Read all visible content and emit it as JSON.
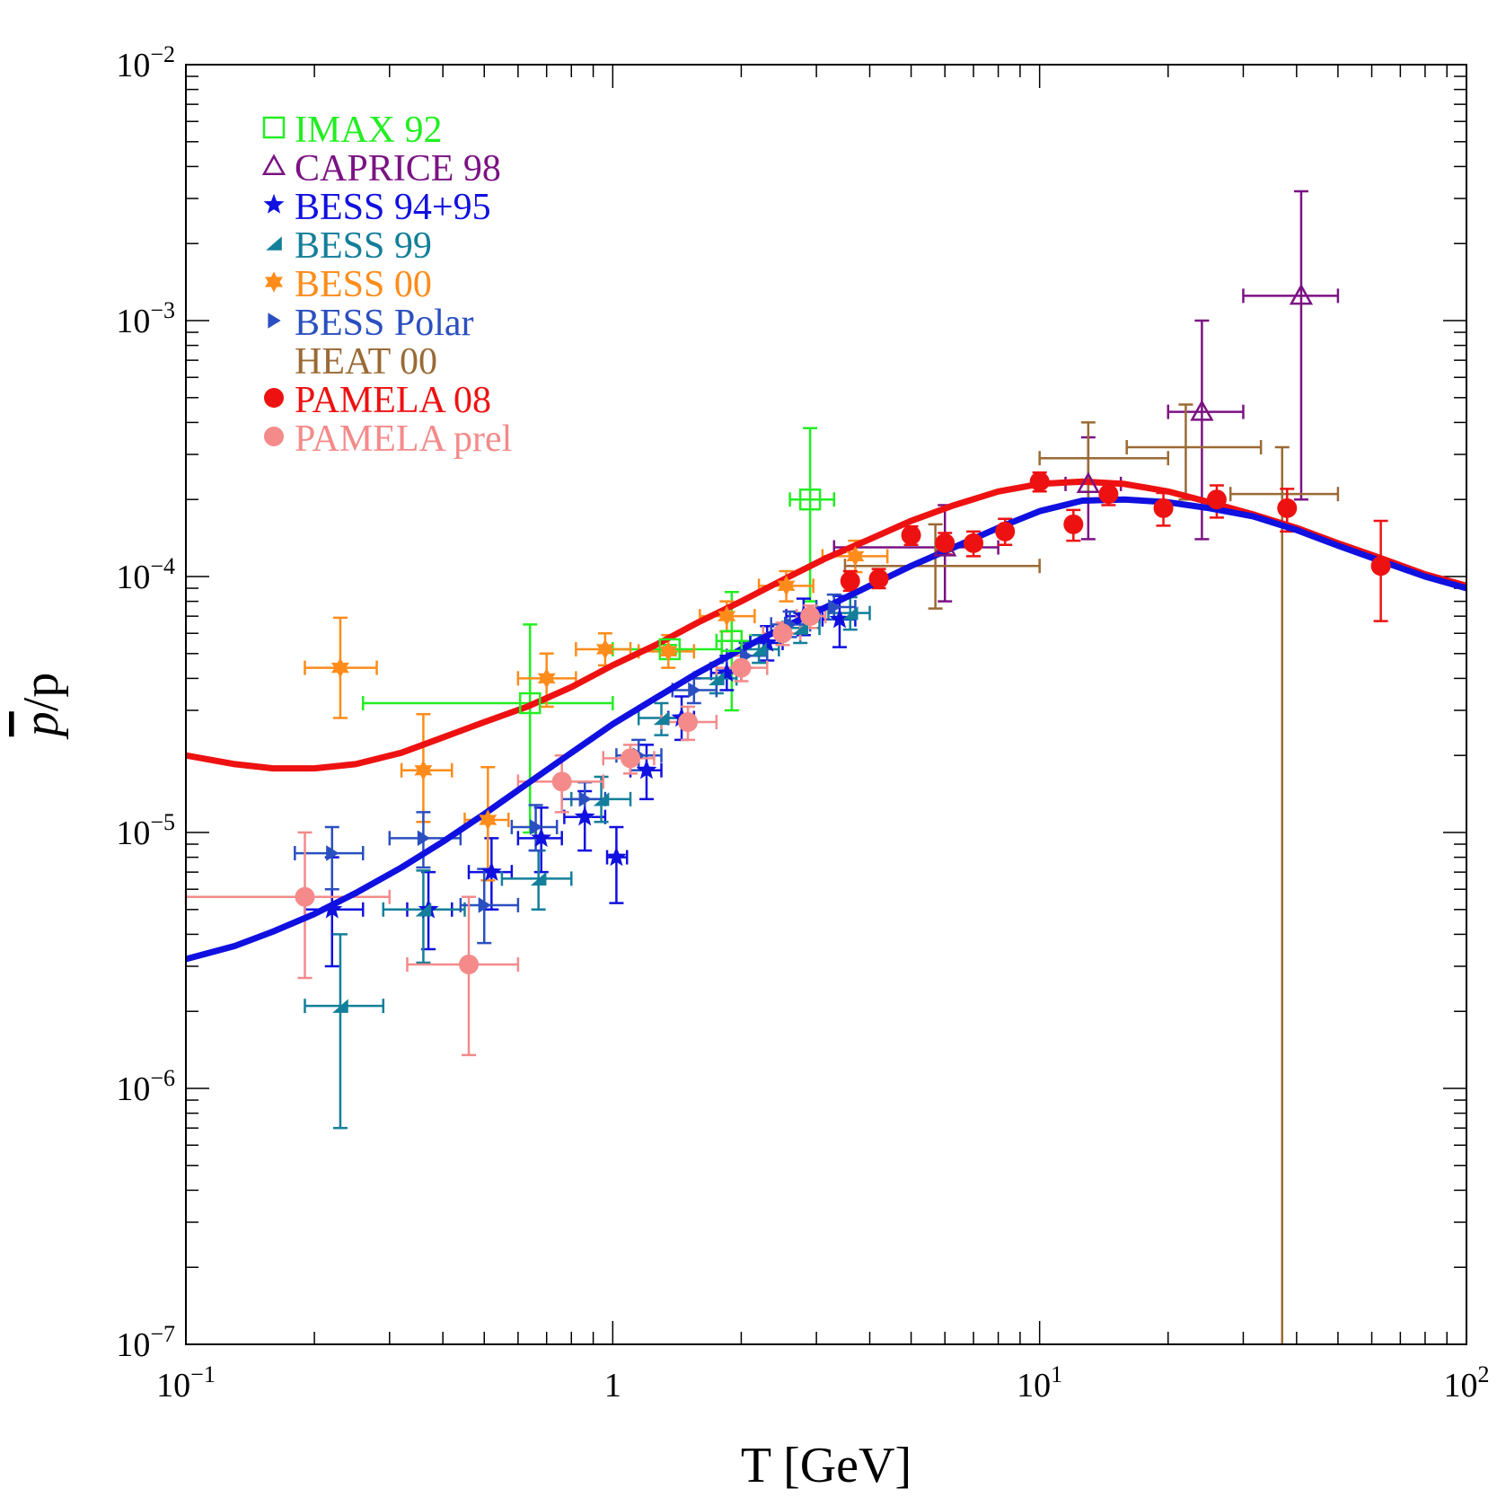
{
  "chart_data": {
    "type": "scatter",
    "title": "",
    "xlabel": "T [GeV]",
    "ylabel_bar": "p",
    "ylabel_rest": "/p",
    "xscale": "log",
    "yscale": "log",
    "xlim": [
      0.1,
      100
    ],
    "ylim": [
      1e-07,
      0.01
    ],
    "grid": false,
    "legend_position": "top-left",
    "x_ticks": [
      {
        "value": 0.1,
        "base": "10",
        "exp": "−1"
      },
      {
        "value": 1,
        "base": "1",
        "exp": ""
      },
      {
        "value": 10,
        "base": "10",
        "exp": "1"
      },
      {
        "value": 100,
        "base": "10",
        "exp": "2"
      }
    ],
    "y_ticks": [
      {
        "value": 0.01,
        "base": "10",
        "exp": "−2"
      },
      {
        "value": 0.001,
        "base": "10",
        "exp": "−3"
      },
      {
        "value": 0.0001,
        "base": "10",
        "exp": "−4"
      },
      {
        "value": 1e-05,
        "base": "10",
        "exp": "−5"
      },
      {
        "value": 1e-06,
        "base": "10",
        "exp": "−6"
      },
      {
        "value": 1e-07,
        "base": "10",
        "exp": "−7"
      }
    ],
    "series": [
      {
        "name": "IMAX 92",
        "color": "#22ee22",
        "marker": "square-open",
        "points": [
          {
            "x": 0.64,
            "y": 3.2e-05,
            "xlo": 0.26,
            "xhi": 1.0,
            "ylo": 1e-05,
            "yhi": 6.5e-05
          },
          {
            "x": 1.36,
            "y": 5.2e-05,
            "xlo": 1.0,
            "xhi": 1.8,
            "ylo": 5e-05,
            "yhi": 5.4e-05
          },
          {
            "x": 1.9,
            "y": 5.6e-05,
            "xlo": 1.75,
            "xhi": 2.1,
            "ylo": 3e-05,
            "yhi": 8.7e-05
          },
          {
            "x": 2.9,
            "y": 0.0002,
            "xlo": 2.6,
            "xhi": 3.3,
            "ylo": 8e-05,
            "yhi": 0.00038
          }
        ]
      },
      {
        "name": "CAPRICE 98",
        "color": "#7b1283",
        "marker": "triangle-open",
        "points": [
          {
            "x": 6.0,
            "y": 0.00013,
            "xlo": 3.3,
            "xhi": 8.0,
            "ylo": 8e-05,
            "yhi": 0.00019
          },
          {
            "x": 13.0,
            "y": 0.00023,
            "xlo": 11.5,
            "xhi": 15.5,
            "ylo": 0.00014,
            "yhi": 0.00035
          },
          {
            "x": 24.0,
            "y": 0.00044,
            "xlo": 20.0,
            "xhi": 30.0,
            "ylo": 0.00014,
            "yhi": 0.001
          },
          {
            "x": 41.0,
            "y": 0.00125,
            "xlo": 30.0,
            "xhi": 50.0,
            "ylo": 0.0002,
            "yhi": 0.0032
          }
        ]
      },
      {
        "name": "BESS 94+95",
        "color": "#1010e0",
        "marker": "star",
        "points": [
          {
            "x": 0.22,
            "y": 5e-06,
            "xlo": 0.19,
            "xhi": 0.26,
            "ylo": 3e-06,
            "yhi": 8e-06
          },
          {
            "x": 0.37,
            "y": 5e-06,
            "xlo": 0.33,
            "xhi": 0.42,
            "ylo": 3.5e-06,
            "yhi": 7e-06
          },
          {
            "x": 0.52,
            "y": 7e-06,
            "xlo": 0.46,
            "xhi": 0.58,
            "ylo": 5e-06,
            "yhi": 9.5e-06
          },
          {
            "x": 0.68,
            "y": 9.5e-06,
            "xlo": 0.6,
            "xhi": 0.76,
            "ylo": 7e-06,
            "yhi": 1.25e-05
          },
          {
            "x": 0.86,
            "y": 1.15e-05,
            "xlo": 0.77,
            "xhi": 0.96,
            "ylo": 8.5e-06,
            "yhi": 1.45e-05
          },
          {
            "x": 1.02,
            "y": 8e-06,
            "xlo": 0.97,
            "xhi": 1.08,
            "ylo": 5.3e-06,
            "yhi": 1.05e-05
          },
          {
            "x": 1.2,
            "y": 1.75e-05,
            "xlo": 1.1,
            "xhi": 1.3,
            "ylo": 1.35e-05,
            "yhi": 2.2e-05
          },
          {
            "x": 1.45,
            "y": 2.8e-05,
            "xlo": 1.35,
            "xhi": 1.55,
            "ylo": 2.3e-05,
            "yhi": 3.4e-05
          },
          {
            "x": 1.85,
            "y": 4.2e-05,
            "xlo": 1.7,
            "xhi": 2.0,
            "ylo": 3.6e-05,
            "yhi": 4.9e-05
          },
          {
            "x": 2.3,
            "y": 5.5e-05,
            "xlo": 2.1,
            "xhi": 2.5,
            "ylo": 4.7e-05,
            "yhi": 6.4e-05
          },
          {
            "x": 2.8,
            "y": 7e-05,
            "xlo": 2.55,
            "xhi": 3.05,
            "ylo": 5.9e-05,
            "yhi": 8.2e-05
          },
          {
            "x": 3.4,
            "y": 6.8e-05,
            "xlo": 3.1,
            "xhi": 3.7,
            "ylo": 5.3e-05,
            "yhi": 8.4e-05
          }
        ]
      },
      {
        "name": "BESS 99",
        "color": "#137f9a",
        "marker": "bowtie",
        "points": [
          {
            "x": 0.23,
            "y": 2.1e-06,
            "xlo": 0.19,
            "xhi": 0.29,
            "ylo": 7e-07,
            "yhi": 4e-06
          },
          {
            "x": 0.36,
            "y": 5e-06,
            "xlo": 0.29,
            "xhi": 0.45,
            "ylo": 3.1e-06,
            "yhi": 7.1e-06
          },
          {
            "x": 0.67,
            "y": 6.6e-06,
            "xlo": 0.55,
            "xhi": 0.8,
            "ylo": 5e-06,
            "yhi": 8.5e-06
          },
          {
            "x": 0.94,
            "y": 1.35e-05,
            "xlo": 0.8,
            "xhi": 1.1,
            "ylo": 1.1e-05,
            "yhi": 1.65e-05
          },
          {
            "x": 1.3,
            "y": 2.8e-05,
            "xlo": 1.15,
            "xhi": 1.45,
            "ylo": 2.4e-05,
            "yhi": 3.2e-05
          },
          {
            "x": 1.75,
            "y": 4e-05,
            "xlo": 1.55,
            "xhi": 1.95,
            "ylo": 3.5e-05,
            "yhi": 4.6e-05
          },
          {
            "x": 2.2,
            "y": 5.2e-05,
            "xlo": 2.0,
            "xhi": 2.45,
            "ylo": 4.6e-05,
            "yhi": 5.9e-05
          },
          {
            "x": 2.75,
            "y": 6.3e-05,
            "xlo": 2.5,
            "xhi": 3.05,
            "ylo": 5.5e-05,
            "yhi": 7.2e-05
          },
          {
            "x": 3.6,
            "y": 7.2e-05,
            "xlo": 3.2,
            "xhi": 4.0,
            "ylo": 6.2e-05,
            "yhi": 8.3e-05
          }
        ]
      },
      {
        "name": "BESS 00",
        "color": "#ff8c1a",
        "marker": "star6",
        "points": [
          {
            "x": 0.23,
            "y": 4.4e-05,
            "xlo": 0.19,
            "xhi": 0.28,
            "ylo": 2.8e-05,
            "yhi": 6.9e-05
          },
          {
            "x": 0.36,
            "y": 1.75e-05,
            "xlo": 0.32,
            "xhi": 0.42,
            "ylo": 1.1e-05,
            "yhi": 2.9e-05
          },
          {
            "x": 0.51,
            "y": 1.12e-05,
            "xlo": 0.45,
            "xhi": 0.57,
            "ylo": 6.5e-06,
            "yhi": 1.8e-05
          },
          {
            "x": 0.7,
            "y": 4e-05,
            "xlo": 0.6,
            "xhi": 0.82,
            "ylo": 3.1e-05,
            "yhi": 5e-05
          },
          {
            "x": 0.96,
            "y": 5.2e-05,
            "xlo": 0.82,
            "xhi": 1.1,
            "ylo": 4.5e-05,
            "yhi": 6e-05
          },
          {
            "x": 1.35,
            "y": 5.1e-05,
            "xlo": 1.15,
            "xhi": 1.55,
            "ylo": 4.4e-05,
            "yhi": 5.9e-05
          },
          {
            "x": 1.85,
            "y": 7e-05,
            "xlo": 1.6,
            "xhi": 2.15,
            "ylo": 6.1e-05,
            "yhi": 8e-05
          },
          {
            "x": 2.55,
            "y": 9.2e-05,
            "xlo": 2.2,
            "xhi": 2.95,
            "ylo": 8e-05,
            "yhi": 0.000105
          },
          {
            "x": 3.7,
            "y": 0.00012,
            "xlo": 3.1,
            "xhi": 4.4,
            "ylo": 0.000104,
            "yhi": 0.000138
          }
        ]
      },
      {
        "name": "BESS Polar",
        "color": "#2a4fc0",
        "marker": "triangle-right",
        "points": [
          {
            "x": 0.22,
            "y": 8.3e-06,
            "xlo": 0.18,
            "xhi": 0.26,
            "ylo": 6e-06,
            "yhi": 1.05e-05
          },
          {
            "x": 0.36,
            "y": 9.5e-06,
            "xlo": 0.3,
            "xhi": 0.44,
            "ylo": 7.3e-06,
            "yhi": 1.2e-05
          },
          {
            "x": 0.5,
            "y": 5.2e-06,
            "xlo": 0.44,
            "xhi": 0.6,
            "ylo": 3.7e-06,
            "yhi": 7.2e-06
          },
          {
            "x": 0.66,
            "y": 1.05e-05,
            "xlo": 0.58,
            "xhi": 0.74,
            "ylo": 8.5e-06,
            "yhi": 1.28e-05
          },
          {
            "x": 0.86,
            "y": 1.35e-05,
            "xlo": 0.76,
            "xhi": 0.96,
            "ylo": 1.15e-05,
            "yhi": 1.57e-05
          },
          {
            "x": 1.15,
            "y": 2e-05,
            "xlo": 1.02,
            "xhi": 1.3,
            "ylo": 1.75e-05,
            "yhi": 2.3e-05
          },
          {
            "x": 1.55,
            "y": 3.6e-05,
            "xlo": 1.38,
            "xhi": 1.75,
            "ylo": 3.2e-05,
            "yhi": 4e-05
          },
          {
            "x": 2.05,
            "y": 4.9e-05,
            "xlo": 1.85,
            "xhi": 2.3,
            "ylo": 4.4e-05,
            "yhi": 5.5e-05
          },
          {
            "x": 2.6,
            "y": 6.5e-05,
            "xlo": 2.35,
            "xhi": 2.9,
            "ylo": 5.8e-05,
            "yhi": 7.3e-05
          },
          {
            "x": 3.3,
            "y": 7.6e-05,
            "xlo": 3.0,
            "xhi": 3.7,
            "ylo": 6.8e-05,
            "yhi": 8.5e-05
          }
        ]
      },
      {
        "name": "HEAT 00",
        "color": "#9a6a35",
        "marker": "none",
        "points": [
          {
            "x": 5.7,
            "y": 0.00011,
            "xlo": 3.5,
            "xhi": 10.0,
            "ylo": 7.5e-05,
            "yhi": 0.00016
          },
          {
            "x": 13.0,
            "y": 0.00029,
            "xlo": 10.0,
            "xhi": 20.0,
            "ylo": 0.0002,
            "yhi": 0.0004
          },
          {
            "x": 22.0,
            "y": 0.00032,
            "xlo": 16.0,
            "xhi": 33.0,
            "ylo": 0.0002,
            "yhi": 0.00047
          },
          {
            "x": 37.0,
            "y": 0.00021,
            "xlo": 28.0,
            "xhi": 50.0,
            "ylo": 1e-07,
            "yhi": 0.00032
          }
        ]
      },
      {
        "name": "PAMELA 08",
        "color": "#ee1111",
        "marker": "circle",
        "points": [
          {
            "x": 3.6,
            "y": 9.6e-05,
            "xlo": 3.6,
            "xhi": 3.6,
            "ylo": 8.8e-05,
            "yhi": 0.000105
          },
          {
            "x": 4.2,
            "y": 9.8e-05,
            "xlo": 4.2,
            "xhi": 4.2,
            "ylo": 9e-05,
            "yhi": 0.000107
          },
          {
            "x": 5.0,
            "y": 0.000145,
            "xlo": 5.0,
            "xhi": 5.0,
            "ylo": 0.000133,
            "yhi": 0.000157
          },
          {
            "x": 6.0,
            "y": 0.000135,
            "xlo": 6.0,
            "xhi": 6.0,
            "ylo": 0.000122,
            "yhi": 0.000148
          },
          {
            "x": 7.0,
            "y": 0.000135,
            "xlo": 7.0,
            "xhi": 7.0,
            "ylo": 0.00012,
            "yhi": 0.00015
          },
          {
            "x": 8.3,
            "y": 0.00015,
            "xlo": 8.3,
            "xhi": 8.3,
            "ylo": 0.000133,
            "yhi": 0.000168
          },
          {
            "x": 10.0,
            "y": 0.000235,
            "xlo": 10.0,
            "xhi": 10.0,
            "ylo": 0.000215,
            "yhi": 0.000255
          },
          {
            "x": 12.0,
            "y": 0.00016,
            "xlo": 12.0,
            "xhi": 12.0,
            "ylo": 0.000138,
            "yhi": 0.000182
          },
          {
            "x": 14.5,
            "y": 0.00021,
            "xlo": 14.5,
            "xhi": 14.5,
            "ylo": 0.00019,
            "yhi": 0.00023
          },
          {
            "x": 19.5,
            "y": 0.000185,
            "xlo": 19.5,
            "xhi": 19.5,
            "ylo": 0.000158,
            "yhi": 0.000212
          },
          {
            "x": 26.0,
            "y": 0.0002,
            "xlo": 26.0,
            "xhi": 26.0,
            "ylo": 0.00017,
            "yhi": 0.000227
          },
          {
            "x": 38.0,
            "y": 0.000185,
            "xlo": 38.0,
            "xhi": 38.0,
            "ylo": 0.00015,
            "yhi": 0.00022
          },
          {
            "x": 63.0,
            "y": 0.00011,
            "xlo": 63.0,
            "xhi": 63.0,
            "ylo": 6.7e-05,
            "yhi": 0.000165
          }
        ]
      },
      {
        "name": "PAMELA prel",
        "color": "#f48a8a",
        "marker": "circle",
        "points": [
          {
            "x": 0.19,
            "y": 5.6e-06,
            "xlo": 0.1,
            "xhi": 0.3,
            "ylo": 2.7e-06,
            "yhi": 1e-05
          },
          {
            "x": 0.46,
            "y": 3.05e-06,
            "xlo": 0.33,
            "xhi": 0.6,
            "ylo": 1.35e-06,
            "yhi": 5.6e-06
          },
          {
            "x": 0.76,
            "y": 1.58e-05,
            "xlo": 0.6,
            "xhi": 0.95,
            "ylo": 1.2e-05,
            "yhi": 2e-05
          },
          {
            "x": 1.1,
            "y": 1.95e-05,
            "xlo": 0.95,
            "xhi": 1.25,
            "ylo": 1.7e-05,
            "yhi": 2.2e-05
          },
          {
            "x": 1.5,
            "y": 2.7e-05,
            "xlo": 1.3,
            "xhi": 1.75,
            "ylo": 2.3e-05,
            "yhi": 3.1e-05
          },
          {
            "x": 2.0,
            "y": 4.4e-05,
            "xlo": 1.75,
            "xhi": 2.3,
            "ylo": 3.9e-05,
            "yhi": 4.9e-05
          },
          {
            "x": 2.5,
            "y": 6e-05,
            "xlo": 2.25,
            "xhi": 2.75,
            "ylo": 5.4e-05,
            "yhi": 6.6e-05
          },
          {
            "x": 2.9,
            "y": 7e-05,
            "xlo": 2.7,
            "xhi": 3.15,
            "ylo": 6.3e-05,
            "yhi": 7.7e-05
          }
        ]
      }
    ],
    "curves": [
      {
        "color": "#ee1111",
        "points": [
          [
            0.1,
            2e-05
          ],
          [
            0.13,
            1.85e-05
          ],
          [
            0.16,
            1.78e-05
          ],
          [
            0.2,
            1.78e-05
          ],
          [
            0.25,
            1.85e-05
          ],
          [
            0.32,
            2.05e-05
          ],
          [
            0.4,
            2.35e-05
          ],
          [
            0.5,
            2.7e-05
          ],
          [
            0.63,
            3.1e-05
          ],
          [
            0.8,
            3.7e-05
          ],
          [
            1.0,
            4.5e-05
          ],
          [
            1.26,
            5.4e-05
          ],
          [
            1.58,
            6.6e-05
          ],
          [
            2.0,
            8e-05
          ],
          [
            2.5,
            9.7e-05
          ],
          [
            3.16,
            0.000118
          ],
          [
            4.0,
            0.00014
          ],
          [
            5.0,
            0.000165
          ],
          [
            6.3,
            0.00019
          ],
          [
            8.0,
            0.000215
          ],
          [
            10.0,
            0.00023
          ],
          [
            12.6,
            0.000235
          ],
          [
            15.8,
            0.00023
          ],
          [
            20.0,
            0.000215
          ],
          [
            25.0,
            0.000195
          ],
          [
            31.6,
            0.000175
          ],
          [
            40.0,
            0.000155
          ],
          [
            50.0,
            0.000135
          ],
          [
            63.0,
            0.000118
          ],
          [
            80.0,
            0.000102
          ],
          [
            100.0,
            9.2e-05
          ]
        ]
      },
      {
        "color": "#1010e0",
        "points": [
          [
            0.1,
            3.2e-06
          ],
          [
            0.13,
            3.6e-06
          ],
          [
            0.16,
            4.1e-06
          ],
          [
            0.2,
            4.8e-06
          ],
          [
            0.25,
            5.8e-06
          ],
          [
            0.32,
            7.3e-06
          ],
          [
            0.4,
            9.2e-06
          ],
          [
            0.5,
            1.18e-05
          ],
          [
            0.63,
            1.55e-05
          ],
          [
            0.8,
            2.05e-05
          ],
          [
            1.0,
            2.65e-05
          ],
          [
            1.26,
            3.35e-05
          ],
          [
            1.58,
            4.2e-05
          ],
          [
            2.0,
            5.2e-05
          ],
          [
            2.5,
            6.3e-05
          ],
          [
            3.16,
            7.6e-05
          ],
          [
            4.0,
            9.2e-05
          ],
          [
            5.0,
            0.00011
          ],
          [
            6.3,
            0.00013
          ],
          [
            8.0,
            0.000155
          ],
          [
            10.0,
            0.00018
          ],
          [
            12.6,
            0.000198
          ],
          [
            15.8,
            0.0002
          ],
          [
            20.0,
            0.000195
          ],
          [
            25.0,
            0.000185
          ],
          [
            31.6,
            0.000172
          ],
          [
            40.0,
            0.000152
          ],
          [
            50.0,
            0.000132
          ],
          [
            63.0,
            0.000115
          ],
          [
            80.0,
            0.0001
          ],
          [
            100.0,
            9e-05
          ]
        ]
      }
    ]
  }
}
